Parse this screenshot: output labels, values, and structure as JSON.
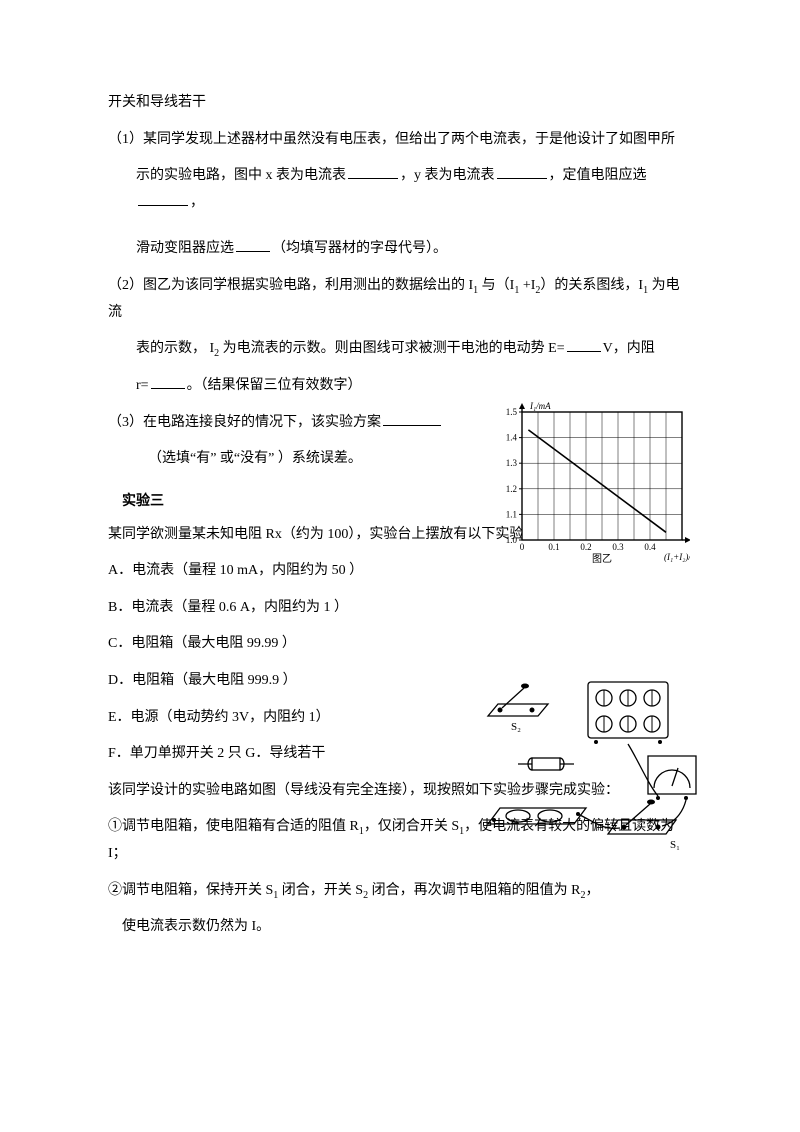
{
  "intro": "开关和导线若干",
  "q1_line1": "（1）某同学发现上述器材中虽然没有电压表，但给出了两个电流表，于是他设计了如图甲所",
  "q1_line2a": "示的实验电路，图中 x 表为电流表",
  "q1_line2b": "，y 表为电流表",
  "q1_line2c": "，定值电阻应选",
  "q1_line2d": "，",
  "q1_line3a": "滑动变阻器应选",
  "q1_line3b": "（均填写器材的字母代号）。",
  "q2_line1a": "（2）图乙为该同学根据实验电路，利用测出的数据绘出的 I",
  "q2_line1_sub1": "1",
  "q2_line1b": " 与（I",
  "q2_line1_sub2": "1",
  "q2_line1c": " +I",
  "q2_line1_sub3": "2",
  "q2_line1d": "）的关系图线，I",
  "q2_line1_sub4": "1",
  "q2_line1e": " 为电流",
  "q2_line2a": "表的示数， I",
  "q2_line2_sub1": "2",
  "q2_line2b": " 为电流表的示数。则由图线可求被测干电池的电动势 E=",
  "q2_line2c": "V，内阻",
  "q2_line3a": "r=",
  "q2_line3b": "。（结果保留三位有效数字）",
  "q3_line1": "（3）在电路连接良好的情况下，该实验方案",
  "q3_line2": "（选填“有” 或“没有” ）系统误差。",
  "section_title": "实验三",
  "exp3_intro": "某同学欲测量某未知电阻 Rx（约为 100），实验台上摆放有以下实验器材：",
  "item_a": "A．电流表（量程 10 mA，内阻约为 50 ）",
  "item_b": "B．电流表（量程 0.6 A，内阻约为 1 ）",
  "item_c": "C．电阻箱（最大电阻 99.99 ）",
  "item_d": "D．电阻箱（最大电阻 999.9 ）",
  "item_e": "E．电源（电动势约 3V，内阻约 1）",
  "item_f": "F．单刀单掷开关 2 只 G．导线若干",
  "step_intro": "该同学设计的实验电路如图（导线没有完全连接），现按照如下实验步骤完成实验：",
  "step1a": "①调节电阻箱，使电阻箱有合适的阻值 R",
  "step1_sub1": "1",
  "step1b": "，仅闭合开关 S",
  "step1_sub2": "1",
  "step1c": "，使电流表有较大的偏转且读数为 I；",
  "step2a": "②调节电阻箱，保持开关 S",
  "step2_sub1": "1",
  "step2b": " 闭合，开关 S",
  "step2_sub2": "2",
  "step2c": " 闭合，再次调节电阻箱的阻值为 R",
  "step2_sub3": "2",
  "step2d": "，",
  "step2_line2": "使电流表示数仍然为 I。",
  "graph": {
    "ylabel": "I₁/mA",
    "xlabel": "(I₁+I₂)/A",
    "caption": "图乙",
    "xticks": [
      "0",
      "0.1",
      "0.2",
      "0.3",
      "0.4"
    ],
    "yticks": [
      "1.0",
      "1.1",
      "1.2",
      "1.3",
      "1.4",
      "1.5"
    ],
    "bg": "#ffffff",
    "grid_color": "#000000",
    "line_color": "#000000",
    "line_x1": 0.02,
    "line_y1": 1.43,
    "line_x2": 0.45,
    "line_y2": 1.03
  },
  "equip": {
    "s1_label": "S₁",
    "s2_label": "S₂"
  }
}
